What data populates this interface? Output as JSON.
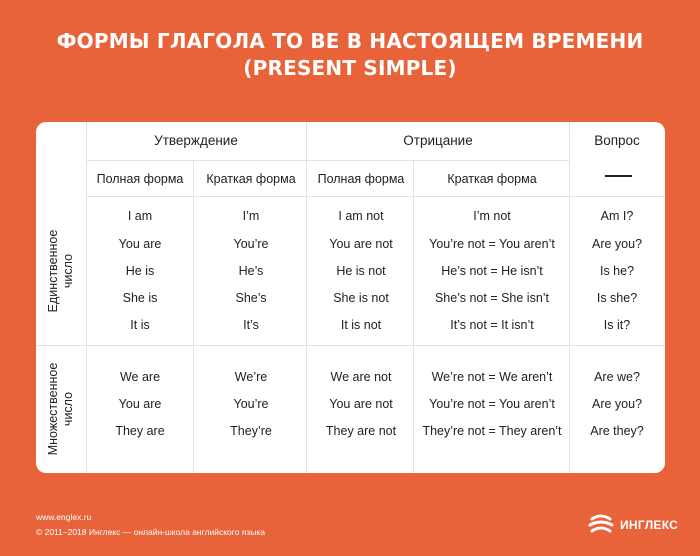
{
  "title": {
    "line1": "ФОРМЫ ГЛАГОЛА TO BE В НАСТОЯЩЕМ ВРЕМЕНИ",
    "line2": "(PRESENT SIMPLE)"
  },
  "headers": {
    "affirmative": "Утверждение",
    "negative": "Отрицание",
    "question": "Вопрос"
  },
  "subheaders": {
    "aff_full": "Полная форма",
    "aff_short": "Краткая форма",
    "neg_full": "Полная форма",
    "neg_short": "Краткая форма"
  },
  "sections": {
    "singular_label_1": "Единственное",
    "singular_label_2": "число",
    "plural_label_1": "Множественное",
    "plural_label_2": "число"
  },
  "singular": [
    {
      "aff_full": "I am",
      "aff_short": "I’m",
      "neg_full": "I am not",
      "neg_short": "I’m not",
      "question": "Am I?"
    },
    {
      "aff_full": "You are",
      "aff_short": "You’re",
      "neg_full": "You are not",
      "neg_short": "You’re not = You aren’t",
      "question": "Are you?"
    },
    {
      "aff_full": "He is",
      "aff_short": "He’s",
      "neg_full": "He is not",
      "neg_short": "He’s not = He isn’t",
      "question": "Is he?"
    },
    {
      "aff_full": "She is",
      "aff_short": "She’s",
      "neg_full": "She is not",
      "neg_short": "She’s not = She isn’t",
      "question": "Is she?"
    },
    {
      "aff_full": "It is",
      "aff_short": "It’s",
      "neg_full": "It is not",
      "neg_short": "It’s not = It isn’t",
      "question": "Is it?"
    }
  ],
  "plural": [
    {
      "aff_full": "We are",
      "aff_short": "We’re",
      "neg_full": "We are not",
      "neg_short": "We’re not = We aren’t",
      "question": "Are we?"
    },
    {
      "aff_full": "You are",
      "aff_short": "You’re",
      "neg_full": "You are not",
      "neg_short": "You’re not = You aren’t",
      "question": "Are you?"
    },
    {
      "aff_full": "They are",
      "aff_short": "They’re",
      "neg_full": "They are not",
      "neg_short": "They’re not = They aren’t",
      "question": "Are they?"
    }
  ],
  "footer": {
    "url": "www.englex.ru",
    "copyright": "© 2011–2018 Инглекс — онлайн-школа английского языка"
  },
  "logo": {
    "text": "ИНГЛЕКС"
  },
  "colors": {
    "background": "#e8623a",
    "card": "#ffffff",
    "divider": "#e2e2e2"
  }
}
